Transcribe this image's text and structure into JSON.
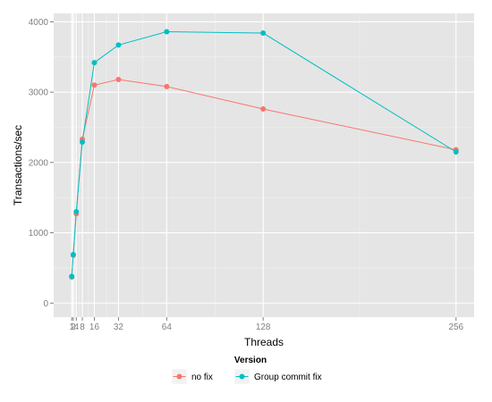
{
  "chart_data": {
    "type": "line",
    "xlabel": "Threads",
    "ylabel": "Transactions/sec",
    "x": [
      1,
      2,
      4,
      8,
      16,
      32,
      64,
      128,
      256
    ],
    "x_tick_labels": [
      "1",
      "2",
      "4",
      "8",
      "16",
      "32",
      "64",
      "128",
      "256"
    ],
    "y_ticks": [
      0,
      1000,
      2000,
      3000,
      4000
    ],
    "y_tick_labels": [
      "0",
      "1000",
      "2000",
      "3000",
      "4000"
    ],
    "xlim": [
      -11,
      268
    ],
    "ylim": [
      -200,
      4120
    ],
    "grid": true,
    "legend": {
      "title": "Version",
      "position": "bottom"
    },
    "series": [
      {
        "name": "no fix",
        "color": "#F8766D",
        "values": [
          370,
          680,
          1270,
          2330,
          3100,
          3180,
          3080,
          2760,
          2180
        ]
      },
      {
        "name": "Group commit fix",
        "color": "#00BFC4",
        "values": [
          380,
          690,
          1300,
          2290,
          3420,
          3670,
          3860,
          3840,
          2150
        ]
      }
    ]
  }
}
